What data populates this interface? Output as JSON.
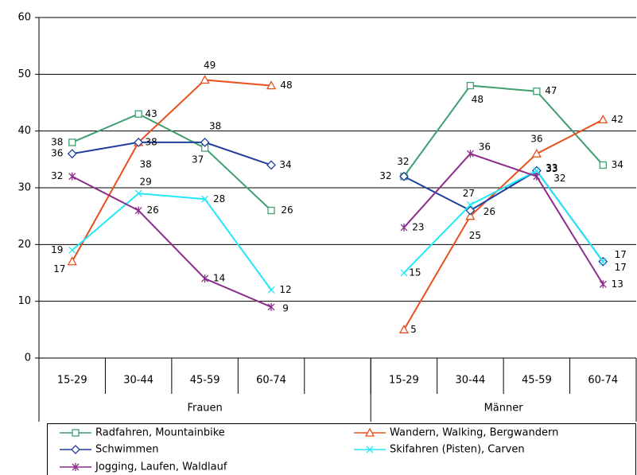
{
  "chart_data": {
    "type": "line",
    "categories": [
      "15-29",
      "30-44",
      "45-59",
      "60-74",
      null,
      "15-29",
      "30-44",
      "45-59",
      "60-74"
    ],
    "groups": [
      {
        "name": "Frauen",
        "count": 5
      },
      {
        "name": "Männer",
        "count": 4
      }
    ],
    "series": [
      {
        "name": "Radfahren, Mountainbike",
        "color": "#3f9f6f",
        "marker": "square",
        "values": [
          38,
          43,
          37,
          26,
          null,
          32,
          48,
          47,
          34
        ]
      },
      {
        "name": "Wandern, Walking, Bergwandern",
        "color": "#e8501e",
        "marker": "triangle",
        "values": [
          17,
          38,
          49,
          48,
          null,
          5,
          25,
          36,
          42
        ]
      },
      {
        "name": "Schwimmen",
        "color": "#1f3f9f",
        "marker": "diamond",
        "values": [
          36,
          38,
          38,
          34,
          null,
          32,
          26,
          33,
          17
        ]
      },
      {
        "name": "Skifahren (Pisten), Carven",
        "color": "#22e8f8",
        "marker": "x",
        "values": [
          19,
          29,
          28,
          12,
          null,
          15,
          27,
          33,
          17
        ]
      },
      {
        "name": "Jogging, Laufen, Waldlauf",
        "color": "#8b2d8b",
        "marker": "star",
        "values": [
          32,
          26,
          14,
          9,
          null,
          23,
          36,
          32,
          13
        ]
      }
    ],
    "ylim": [
      0,
      60
    ],
    "yticks": [
      0,
      10,
      20,
      30,
      40,
      50,
      60
    ],
    "grid": true,
    "legend": "bottom"
  }
}
